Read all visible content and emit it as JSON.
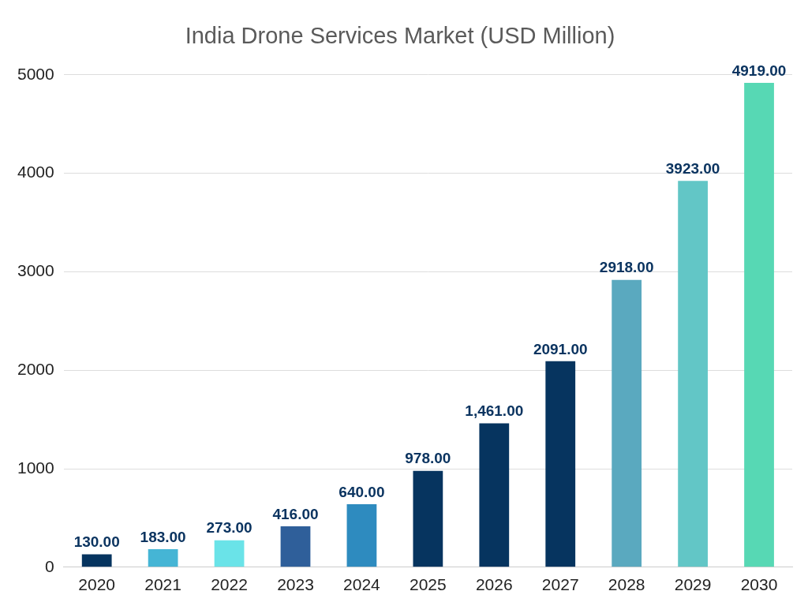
{
  "chart_data": {
    "type": "bar",
    "title": "India Drone Services Market (USD Million)",
    "categories": [
      "2020",
      "2021",
      "2022",
      "2023",
      "2024",
      "2025",
      "2026",
      "2027",
      "2028",
      "2029",
      "2030"
    ],
    "values": [
      130,
      183,
      273,
      416,
      640,
      978,
      1461,
      2091,
      2918,
      3923,
      4919
    ],
    "value_labels": [
      "130.00",
      "183.00",
      "273.00",
      "416.00",
      "640.00",
      "978.00",
      "1,461.00",
      "2091.00",
      "2918.00",
      "3923.00",
      "4919.00"
    ],
    "colors": [
      "#06345f",
      "#45b5d5",
      "#6ae3e8",
      "#2f5f9a",
      "#2e8bbf",
      "#06345f",
      "#06345f",
      "#06345f",
      "#5aa9bf",
      "#62c6c6",
      "#57d8b4"
    ],
    "ylim": [
      0,
      5000
    ],
    "yticks": [
      0,
      1000,
      2000,
      3000,
      4000,
      5000
    ],
    "grid": true,
    "data_labels": true
  }
}
